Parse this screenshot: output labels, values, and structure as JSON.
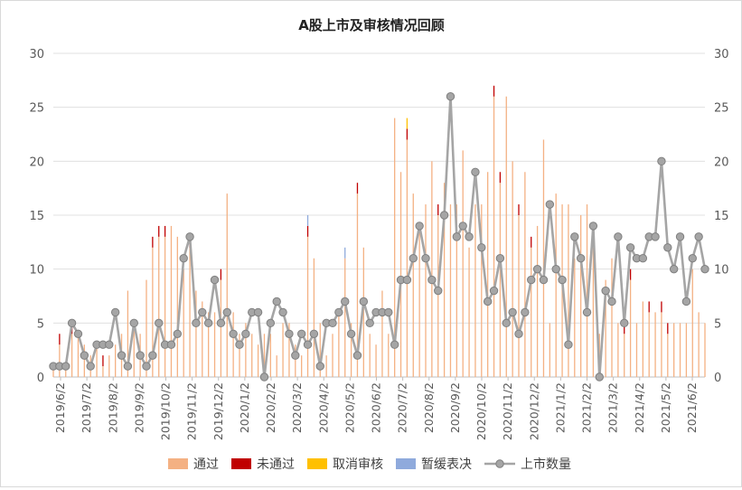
{
  "chart_data": {
    "type": "bar+line",
    "title": "A股上市及审核情况回顾",
    "ylim_left": [
      0,
      30
    ],
    "ylim_right": [
      0,
      30
    ],
    "yticks": [
      0,
      5,
      10,
      15,
      20,
      25,
      30
    ],
    "grid": true,
    "legend_position": "bottom",
    "x_tick_labels": [
      "2019/6/2",
      "2019/7/2",
      "2019/8/2",
      "2019/9/2",
      "2019/10/2",
      "2019/11/2",
      "2019/12/2",
      "2020/1/2",
      "2020/2/2",
      "2020/3/2",
      "2020/4/2",
      "2020/5/2",
      "2020/6/2",
      "2020/7/2",
      "2020/8/2",
      "2020/9/2",
      "2020/10/2",
      "2020/11/2",
      "2020/12/2",
      "2021/1/2",
      "2021/2/2",
      "2021/3/2",
      "2021/4/2",
      "2021/5/2",
      "2021/6/2"
    ],
    "colors": {
      "通过": "#f4b183",
      "未通过": "#c00000",
      "取消审核": "#ffc000",
      "暂缓表决": "#8faadc",
      "上市数量": "#a5a5a5"
    },
    "series": [
      {
        "name": "通过",
        "kind": "bar",
        "values": [
          1,
          3,
          1,
          4,
          4,
          3,
          2,
          3,
          1,
          2,
          3,
          4,
          8,
          5,
          4,
          9,
          12,
          13,
          13,
          14,
          13,
          10,
          12,
          8,
          7,
          6,
          6,
          9,
          17,
          6,
          4,
          5,
          4,
          3,
          4,
          4,
          2,
          5,
          5,
          3,
          2,
          13,
          11,
          5,
          2,
          4,
          6,
          11,
          5,
          17,
          12,
          4,
          3,
          8,
          4,
          24,
          19,
          22,
          17,
          14,
          16,
          20,
          15,
          18,
          16,
          16,
          21,
          12,
          16,
          16,
          19,
          26,
          18,
          26,
          20,
          15,
          19,
          12,
          14,
          22,
          5,
          17,
          16,
          16,
          11,
          15,
          16,
          12,
          4,
          9,
          11,
          5,
          4,
          9,
          5,
          7,
          6,
          6,
          6,
          4,
          5,
          5,
          5,
          10,
          6,
          5,
          8,
          4,
          12,
          10,
          13,
          8
        ]
      },
      {
        "name": "未通过",
        "kind": "bar",
        "values": [
          0,
          1,
          0,
          1,
          0,
          0,
          0,
          0,
          1,
          0,
          0,
          0,
          0,
          0,
          0,
          0,
          1,
          1,
          1,
          0,
          0,
          0,
          1,
          0,
          0,
          0,
          0,
          1,
          0,
          0,
          0,
          0,
          0,
          0,
          0,
          0,
          0,
          0,
          0,
          0,
          0,
          1,
          0,
          0,
          0,
          0,
          0,
          0,
          0,
          1,
          0,
          0,
          0,
          0,
          0,
          0,
          0,
          1,
          0,
          0,
          0,
          0,
          1,
          0,
          0,
          0,
          0,
          0,
          0,
          0,
          0,
          1,
          1,
          0,
          0,
          1,
          0,
          1,
          0,
          0,
          0,
          0,
          0,
          0,
          0,
          0,
          0,
          0,
          0,
          0,
          0,
          0,
          1,
          1,
          0,
          0,
          1,
          0,
          1,
          1,
          0,
          0,
          0,
          0,
          0,
          0,
          1,
          0,
          0,
          0,
          0,
          0
        ]
      },
      {
        "name": "取消审核",
        "kind": "bar",
        "values": [
          0,
          0,
          0,
          0,
          0,
          0,
          0,
          0,
          0,
          0,
          0,
          0,
          0,
          0,
          0,
          0,
          0,
          0,
          0,
          0,
          0,
          0,
          0,
          0,
          0,
          0,
          0,
          0,
          0,
          0,
          0,
          0,
          0,
          0,
          0,
          0,
          0,
          0,
          0,
          0,
          0,
          0,
          0,
          0,
          0,
          0,
          0,
          0,
          0,
          0,
          0,
          0,
          0,
          0,
          0,
          0,
          0,
          1,
          0,
          0,
          0,
          0,
          0,
          0,
          0,
          0,
          0,
          0,
          0,
          0,
          0,
          0,
          0,
          0,
          0,
          0,
          0,
          0,
          0,
          0,
          0,
          0,
          0,
          0,
          0,
          0,
          0,
          0,
          0,
          0,
          0,
          0,
          0,
          0,
          0,
          0,
          0,
          0,
          0,
          0,
          0,
          0,
          0,
          0,
          0,
          0,
          0,
          0,
          0,
          0,
          0,
          0
        ]
      },
      {
        "name": "暂缓表决",
        "kind": "bar",
        "values": [
          0,
          0,
          0,
          0,
          0,
          0,
          0,
          0,
          0,
          0,
          0,
          0,
          0,
          0,
          0,
          0,
          0,
          0,
          0,
          0,
          0,
          0,
          0,
          0,
          0,
          0,
          0,
          0,
          0,
          0,
          0,
          0,
          0,
          0,
          0,
          0,
          0,
          0,
          0,
          0,
          0,
          1,
          0,
          0,
          0,
          0,
          0,
          1,
          0,
          0,
          0,
          0,
          0,
          0,
          0,
          0,
          0,
          0,
          0,
          0,
          0,
          0,
          0,
          0,
          0,
          0,
          0,
          0,
          0,
          0,
          0,
          0,
          0,
          0,
          0,
          0,
          0,
          0,
          0,
          0,
          0,
          0,
          0,
          0,
          0,
          0,
          0,
          0,
          0,
          0,
          0,
          0,
          0,
          0,
          0,
          0,
          0,
          0,
          0,
          0,
          0,
          0,
          0,
          0,
          0,
          0,
          0,
          0,
          0,
          0,
          0,
          0
        ]
      },
      {
        "name": "上市数量",
        "kind": "line",
        "axis": "right",
        "values": [
          1,
          1,
          1,
          5,
          4,
          2,
          1,
          3,
          3,
          3,
          6,
          2,
          1,
          5,
          2,
          1,
          2,
          5,
          3,
          3,
          4,
          11,
          13,
          5,
          6,
          5,
          9,
          5,
          6,
          4,
          3,
          4,
          6,
          6,
          0,
          5,
          7,
          6,
          4,
          2,
          4,
          3,
          4,
          1,
          5,
          5,
          6,
          7,
          4,
          2,
          7,
          5,
          6,
          6,
          6,
          3,
          9,
          9,
          11,
          14,
          11,
          9,
          8,
          15,
          26,
          13,
          14,
          13,
          19,
          12,
          7,
          8,
          11,
          5,
          6,
          4,
          6,
          9,
          10,
          9,
          16,
          10,
          9,
          3,
          13,
          11,
          6,
          14,
          0,
          8,
          7,
          13,
          5,
          12,
          11,
          11,
          13,
          13,
          20,
          12,
          10,
          13,
          7,
          11,
          13,
          10
        ]
      }
    ]
  }
}
